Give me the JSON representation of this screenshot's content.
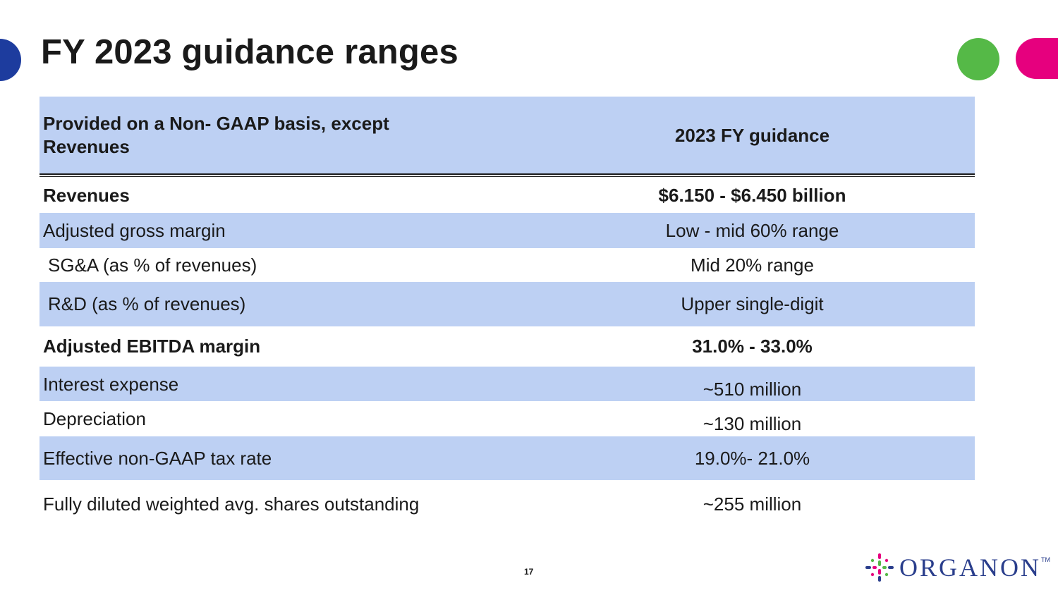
{
  "slide": {
    "title": "FY 2023 guidance ranges",
    "page_number": "17"
  },
  "table": {
    "header": {
      "col1": "Provided on a Non- GAAP basis, except Revenues",
      "col2": "2023 FY guidance"
    },
    "rows": [
      {
        "label": "Revenues",
        "value": "$6.150  - $6.450 billion"
      },
      {
        "label": "Adjusted gross margin",
        "value": "Low - mid 60% range"
      },
      {
        "label": "SG&A (as % of revenues)",
        "value": "Mid 20% range"
      },
      {
        "label": "R&D (as % of revenues)",
        "value": "Upper single-digit"
      },
      {
        "label": "Adjusted EBITDA margin",
        "value": "31.0% - 33.0%"
      },
      {
        "label": "Interest expense",
        "value": "~510 million"
      },
      {
        "label": "Depreciation",
        "value": "~130 million"
      },
      {
        "label": "Effective non-GAAP tax rate",
        "value": "19.0%- 21.0%"
      },
      {
        "label": "Fully diluted weighted avg. shares outstanding",
        "value": "~255 million"
      }
    ]
  },
  "logo": {
    "name": "ORGANON",
    "tm": "TM"
  },
  "colors": {
    "row_blue": "#bdd0f3",
    "brand_blue": "#1d3c9e",
    "brand_green": "#55b947",
    "brand_pink": "#e6007e",
    "logo_blue": "#2a3e8c"
  }
}
